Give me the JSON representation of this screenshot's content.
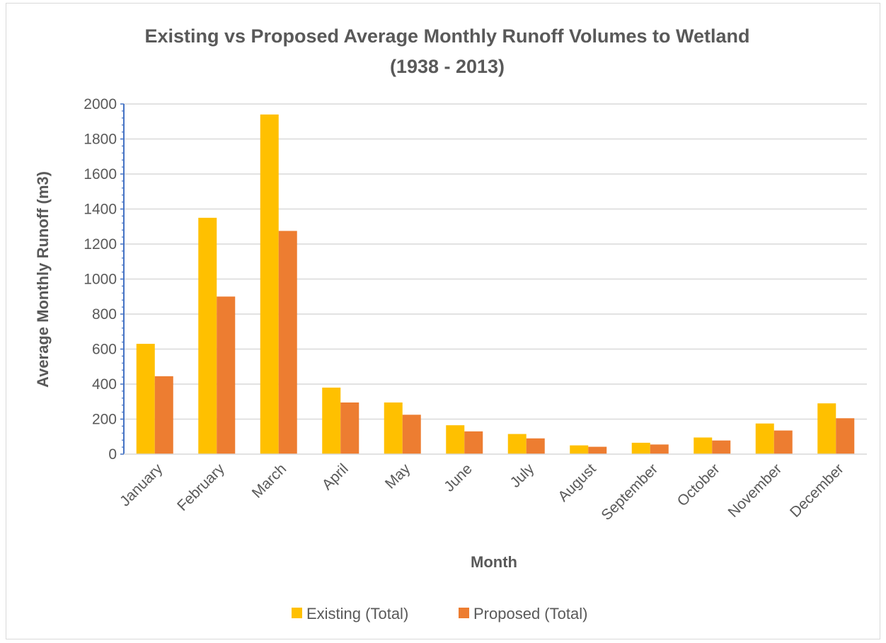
{
  "chart_data": {
    "type": "bar",
    "title": "Existing vs Proposed Average Monthly Runoff Volumes to Wetland",
    "subtitle": "(1938 - 2013)",
    "xlabel": "Month",
    "ylabel": "Average Monthly Runoff (m3)",
    "ylim": [
      0,
      2000
    ],
    "yticks": [
      0,
      200,
      400,
      600,
      800,
      1000,
      1200,
      1400,
      1600,
      1800,
      2000
    ],
    "grid": true,
    "legend_position": "bottom",
    "categories": [
      "January",
      "February",
      "March",
      "April",
      "May",
      "June",
      "July",
      "August",
      "September",
      "October",
      "November",
      "December"
    ],
    "series": [
      {
        "name": "Existing (Total)",
        "color": "#FFC000",
        "values": [
          630,
          1350,
          1940,
          380,
          295,
          165,
          115,
          50,
          65,
          95,
          175,
          290
        ]
      },
      {
        "name": "Proposed (Total)",
        "color": "#ED7D31",
        "values": [
          445,
          900,
          1275,
          295,
          225,
          130,
          90,
          42,
          55,
          78,
          135,
          205
        ]
      }
    ]
  }
}
